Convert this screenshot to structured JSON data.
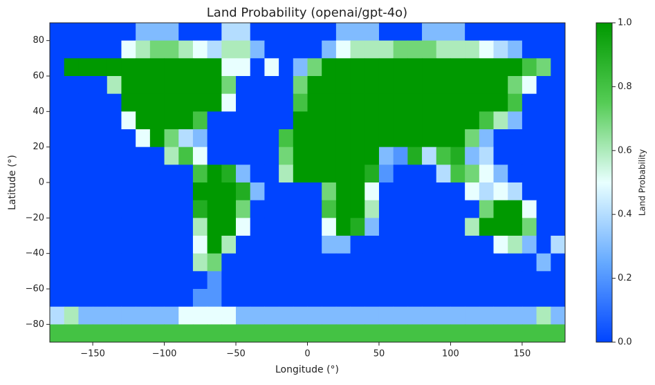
{
  "chart_data": {
    "type": "heatmap",
    "title": "Land Probability (openai/gpt-4o)",
    "xlabel": "Longitude (°)",
    "ylabel": "Latitude (°)",
    "xlim": [
      -180,
      180
    ],
    "ylim": [
      -90,
      90
    ],
    "xticks": [
      {
        "value": -150,
        "label": "−150"
      },
      {
        "value": -100,
        "label": "−100"
      },
      {
        "value": -50,
        "label": "−50"
      },
      0,
      50,
      100,
      150
    ],
    "yticks": [
      {
        "value": -80,
        "label": "−80"
      },
      {
        "value": -60,
        "label": "−60"
      },
      {
        "value": -40,
        "label": "−40"
      },
      {
        "value": -20,
        "label": "−20"
      },
      0,
      20,
      40,
      60,
      80
    ],
    "colorbar": {
      "label": "Land Probability",
      "lim": [
        0,
        1
      ],
      "ticks": [
        {
          "value": 0,
          "label": "0.0"
        },
        0.2,
        0.4,
        0.6,
        0.8,
        {
          "value": 1,
          "label": "1.0"
        }
      ],
      "colors": [
        "#0044ff",
        "#66aaff",
        "#e8ffff",
        "#55cc55",
        "#009900"
      ]
    },
    "values": [
      [
        0,
        0,
        0,
        0,
        0,
        0,
        0.3,
        0.3,
        0.3,
        0,
        0,
        0,
        0.4,
        0.4,
        0,
        0,
        0,
        0,
        0,
        0,
        0.3,
        0.3,
        0.3,
        0,
        0,
        0,
        0.3,
        0.3,
        0.3,
        0,
        0,
        0,
        0,
        0,
        0,
        0
      ],
      [
        0,
        0,
        0,
        0,
        0,
        0.5,
        0.6,
        0.7,
        0.7,
        0.6,
        0.5,
        0.4,
        0.6,
        0.6,
        0.3,
        0,
        0,
        0,
        0,
        0.3,
        0.5,
        0.6,
        0.6,
        0.6,
        0.7,
        0.7,
        0.7,
        0.6,
        0.6,
        0.6,
        0.5,
        0.4,
        0.3,
        0,
        0,
        0
      ],
      [
        0,
        1,
        1,
        1,
        1,
        1,
        1,
        1,
        1,
        1,
        1,
        1,
        0.5,
        0.5,
        0,
        0.5,
        0,
        0.3,
        0.7,
        1,
        1,
        1,
        1,
        1,
        1,
        1,
        1,
        1,
        1,
        1,
        1,
        1,
        1,
        0.8,
        0.7,
        0
      ],
      [
        0,
        0,
        0,
        0,
        0.6,
        1,
        1,
        1,
        1,
        1,
        1,
        1,
        0.7,
        0,
        0,
        0,
        0,
        0.7,
        1,
        1,
        1,
        1,
        1,
        1,
        1,
        1,
        1,
        1,
        1,
        1,
        1,
        1,
        0.7,
        0.5,
        0,
        0
      ],
      [
        0,
        0,
        0,
        0,
        0,
        1,
        1,
        1,
        1,
        1,
        1,
        1,
        0.5,
        0,
        0,
        0,
        0,
        0.8,
        1,
        1,
        1,
        1,
        1,
        1,
        1,
        1,
        1,
        1,
        1,
        1,
        1,
        1,
        0.8,
        0,
        0,
        0
      ],
      [
        0,
        0,
        0,
        0,
        0,
        0.5,
        1,
        1,
        1,
        1,
        0.8,
        0,
        0,
        0,
        0,
        0,
        0,
        1,
        1,
        1,
        1,
        1,
        1,
        1,
        1,
        1,
        1,
        1,
        1,
        1,
        0.8,
        0.6,
        0.3,
        0,
        0,
        0
      ],
      [
        0,
        0,
        0,
        0,
        0,
        0,
        0.5,
        1,
        0.7,
        0.4,
        0.3,
        0,
        0,
        0,
        0,
        0,
        0.8,
        1,
        1,
        1,
        1,
        1,
        1,
        1,
        1,
        1,
        1,
        1,
        1,
        0.7,
        0.3,
        0,
        0,
        0,
        0,
        0
      ],
      [
        0,
        0,
        0,
        0,
        0,
        0,
        0,
        0,
        0.6,
        0.8,
        0.5,
        0,
        0,
        0,
        0,
        0,
        0.7,
        1,
        1,
        1,
        1,
        1,
        1,
        0.3,
        0.2,
        0.9,
        0.4,
        0.8,
        0.9,
        0.3,
        0.4,
        0,
        0,
        0,
        0,
        0
      ],
      [
        0,
        0,
        0,
        0,
        0,
        0,
        0,
        0,
        0,
        0,
        0.8,
        1,
        0.9,
        0.3,
        0,
        0,
        0.6,
        1,
        1,
        1,
        1,
        1,
        0.9,
        0.2,
        0,
        0,
        0,
        0.4,
        0.8,
        0.7,
        0.5,
        0.3,
        0,
        0,
        0,
        0
      ],
      [
        0,
        0,
        0,
        0,
        0,
        0,
        0,
        0,
        0,
        0,
        1,
        1,
        1,
        0.9,
        0.3,
        0,
        0,
        0,
        0,
        0.7,
        1,
        1,
        0.5,
        0,
        0,
        0,
        0,
        0,
        0,
        0.5,
        0.4,
        0.5,
        0.4,
        0,
        0,
        0
      ],
      [
        0,
        0,
        0,
        0,
        0,
        0,
        0,
        0,
        0,
        0,
        0.9,
        1,
        1,
        0.7,
        0,
        0,
        0,
        0,
        0,
        0.8,
        1,
        1,
        0.6,
        0,
        0,
        0,
        0,
        0,
        0,
        0,
        0.7,
        1,
        1,
        0.5,
        0,
        0
      ],
      [
        0,
        0,
        0,
        0,
        0,
        0,
        0,
        0,
        0,
        0,
        0.6,
        1,
        1,
        0.5,
        0,
        0,
        0,
        0,
        0,
        0.5,
        1,
        0.9,
        0.3,
        0,
        0,
        0,
        0,
        0,
        0,
        0.6,
        1,
        1,
        1,
        0.7,
        0,
        0
      ],
      [
        0,
        0,
        0,
        0,
        0,
        0,
        0,
        0,
        0,
        0,
        0.5,
        1,
        0.6,
        0,
        0,
        0,
        0,
        0,
        0,
        0.3,
        0.3,
        0,
        0,
        0,
        0,
        0,
        0,
        0,
        0,
        0,
        0,
        0.5,
        0.6,
        0.3,
        0,
        0.4
      ],
      [
        0,
        0,
        0,
        0,
        0,
        0,
        0,
        0,
        0,
        0,
        0.6,
        0.7,
        0,
        0,
        0,
        0,
        0,
        0,
        0,
        0,
        0,
        0,
        0,
        0,
        0,
        0,
        0,
        0,
        0,
        0,
        0,
        0,
        0,
        0,
        0.3,
        0
      ],
      [
        0,
        0,
        0,
        0,
        0,
        0,
        0,
        0,
        0,
        0,
        0,
        0.2,
        0,
        0,
        0,
        0,
        0,
        0,
        0,
        0,
        0,
        0,
        0,
        0,
        0,
        0,
        0,
        0,
        0,
        0,
        0,
        0,
        0,
        0,
        0,
        0
      ],
      [
        0,
        0,
        0,
        0,
        0,
        0,
        0,
        0,
        0,
        0,
        0.2,
        0.2,
        0,
        0,
        0,
        0,
        0,
        0,
        0,
        0,
        0,
        0,
        0,
        0,
        0,
        0,
        0,
        0,
        0,
        0,
        0,
        0,
        0,
        0,
        0,
        0
      ],
      [
        0.4,
        0.6,
        0.3,
        0.3,
        0.3,
        0.3,
        0.3,
        0.3,
        0.3,
        0.5,
        0.5,
        0.5,
        0.5,
        0.3,
        0.3,
        0.3,
        0.3,
        0.3,
        0.3,
        0.3,
        0.3,
        0.3,
        0.3,
        0.3,
        0.3,
        0.3,
        0.3,
        0.3,
        0.3,
        0.3,
        0.3,
        0.3,
        0.3,
        0.3,
        0.6,
        0.3
      ],
      [
        0.8,
        0.8,
        0.8,
        0.8,
        0.8,
        0.8,
        0.8,
        0.8,
        0.8,
        0.8,
        0.8,
        0.8,
        0.8,
        0.8,
        0.8,
        0.8,
        0.8,
        0.8,
        0.8,
        0.8,
        0.8,
        0.8,
        0.8,
        0.8,
        0.8,
        0.8,
        0.8,
        0.8,
        0.8,
        0.8,
        0.8,
        0.8,
        0.8,
        0.8,
        0.8,
        0.8
      ]
    ]
  }
}
